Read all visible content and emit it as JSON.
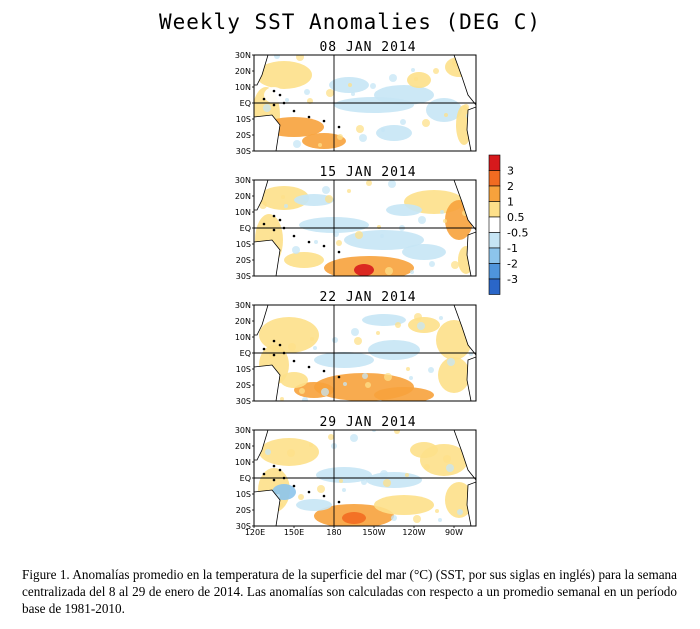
{
  "figure": {
    "title": "Weekly SST Anomalies (DEG C)",
    "panels": [
      {
        "date": "08 JAN 2014"
      },
      {
        "date": "15 JAN 2014"
      },
      {
        "date": "22 JAN 2014"
      },
      {
        "date": "29 JAN 2014"
      }
    ],
    "lat_labels": [
      "30N",
      "20N",
      "10N",
      "EQ",
      "10S",
      "20S",
      "30S"
    ],
    "lon_labels": [
      "120E",
      "150E",
      "180",
      "150W",
      "120W",
      "90W"
    ],
    "colorbar": {
      "labels": [
        "3",
        "2",
        "1",
        "0.5",
        "-0.5",
        "-1",
        "-2",
        "-3"
      ],
      "colors": [
        "#d7191c",
        "#f26b21",
        "#f7a23c",
        "#fde08a",
        "#ffffff",
        "#c6e5f5",
        "#8cc4ec",
        "#4f95dc",
        "#2a66c8"
      ]
    },
    "caption": "Figure 1. Anomalías promedio en la temperatura de la superficie del mar (°C) (SST, por sus siglas en inglés) para la semana centralizada del 8 al 29 de enero de 2014.  Las anomalías son calculadas con respecto a un promedio semanal en un período base de 1981-2010."
  }
}
